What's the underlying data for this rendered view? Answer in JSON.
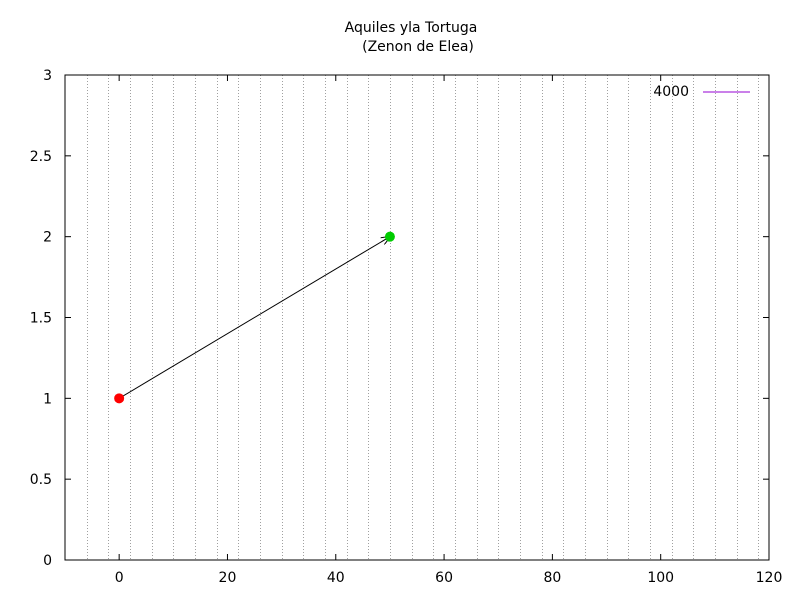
{
  "chart_data": {
    "type": "scatter",
    "title": "Aquiles yla Tortuga",
    "subtitle": "(Zenon de Elea)",
    "xlim": [
      -10,
      120
    ],
    "ylim": [
      0,
      3
    ],
    "x_ticks": [
      0,
      20,
      40,
      60,
      80,
      100,
      120
    ],
    "x_tick_labels": [
      "0",
      "20",
      "40",
      "60",
      "80",
      "100",
      "120"
    ],
    "y_ticks": [
      0,
      0.5,
      1,
      1.5,
      2,
      2.5,
      3
    ],
    "y_tick_labels": [
      "0",
      "0.5",
      "1",
      "1.5",
      "2",
      "2.5",
      "3"
    ],
    "grid_x_step": 4,
    "grid": "vertical dotted",
    "legend": {
      "placement": "top-right",
      "label": "4000",
      "color": "#9400d3"
    },
    "points": [
      {
        "x": 0,
        "y": 1,
        "color": "#ff0000"
      },
      {
        "x": 50,
        "y": 2,
        "color": "#00cc00"
      }
    ],
    "arrow": {
      "from": [
        0,
        1
      ],
      "to": [
        50,
        2
      ],
      "color": "#000000"
    }
  }
}
